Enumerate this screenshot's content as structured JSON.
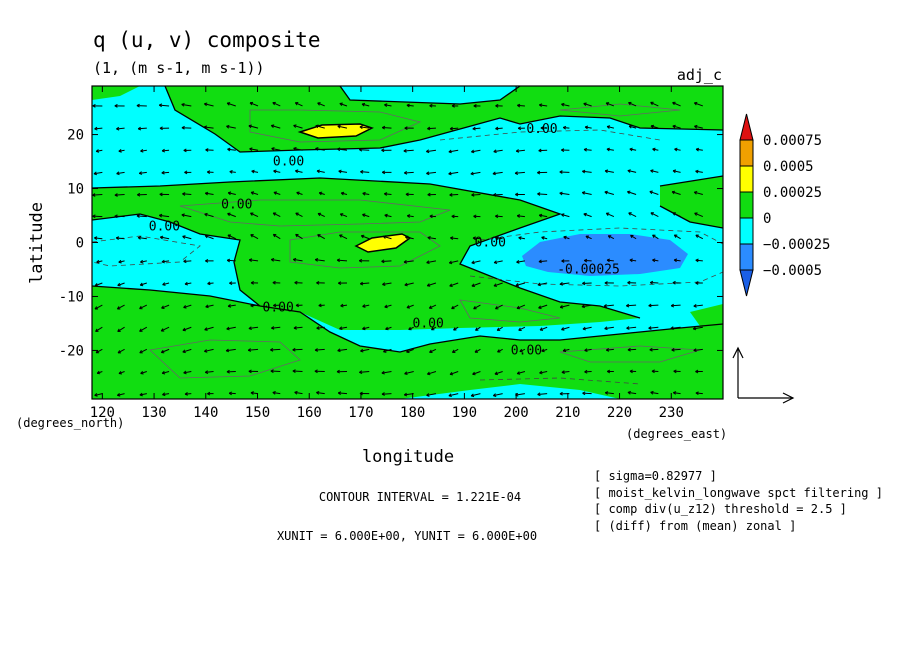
{
  "chart_data": {
    "type": "contour",
    "title": "q (u, v) composite",
    "units": "(1, (m s-1, m s-1))",
    "dataset": "adj_c",
    "xlabel": "longitude",
    "ylabel": "latitude",
    "x_unit": "(degrees_east)",
    "y_unit": "(degrees_north)",
    "xlim": [
      118,
      240
    ],
    "ylim": [
      -29,
      29
    ],
    "x_ticks": [
      120,
      130,
      140,
      150,
      160,
      170,
      180,
      190,
      200,
      210,
      220,
      230
    ],
    "y_ticks": [
      20,
      10,
      0,
      -10,
      -20
    ],
    "colorbar": {
      "levels": [
        "0.00075",
        "0.0005",
        "0.00025",
        "0",
        "−0.00025",
        "−0.0005"
      ],
      "colors": [
        "#dd1111",
        "#f0a000",
        "#ffff00",
        "#11dd11",
        "#00ffff",
        "#2b8cff",
        "#1a5fe6"
      ]
    },
    "contour_labels": [
      {
        "text": "0.00",
        "lon": 205,
        "lat": 21
      },
      {
        "text": "0.00",
        "lon": 156,
        "lat": 15
      },
      {
        "text": "0.00",
        "lon": 146,
        "lat": 7
      },
      {
        "text": "0.00",
        "lon": 132,
        "lat": 3
      },
      {
        "text": "0.00",
        "lon": 195,
        "lat": 0
      },
      {
        "text": "-0.00025",
        "lon": 214,
        "lat": -5
      },
      {
        "text": "0.00",
        "lon": 154,
        "lat": -12
      },
      {
        "text": "0.00",
        "lon": 183,
        "lat": -15
      },
      {
        "text": "0.00",
        "lon": 202,
        "lat": -20
      }
    ],
    "contour_interval": "CONTOUR INTERVAL = 1.221E-04",
    "vector_units": "XUNIT = 6.000E+00, YUNIT = 6.000E+00",
    "notes": [
      "[ sigma=0.82977 ]",
      "[ moist_kelvin_longwave spct filtering ]",
      "[ comp div(u_z12) threshold = 2.5 ]",
      "[ (diff) from (mean) zonal ]"
    ],
    "grid": false
  }
}
